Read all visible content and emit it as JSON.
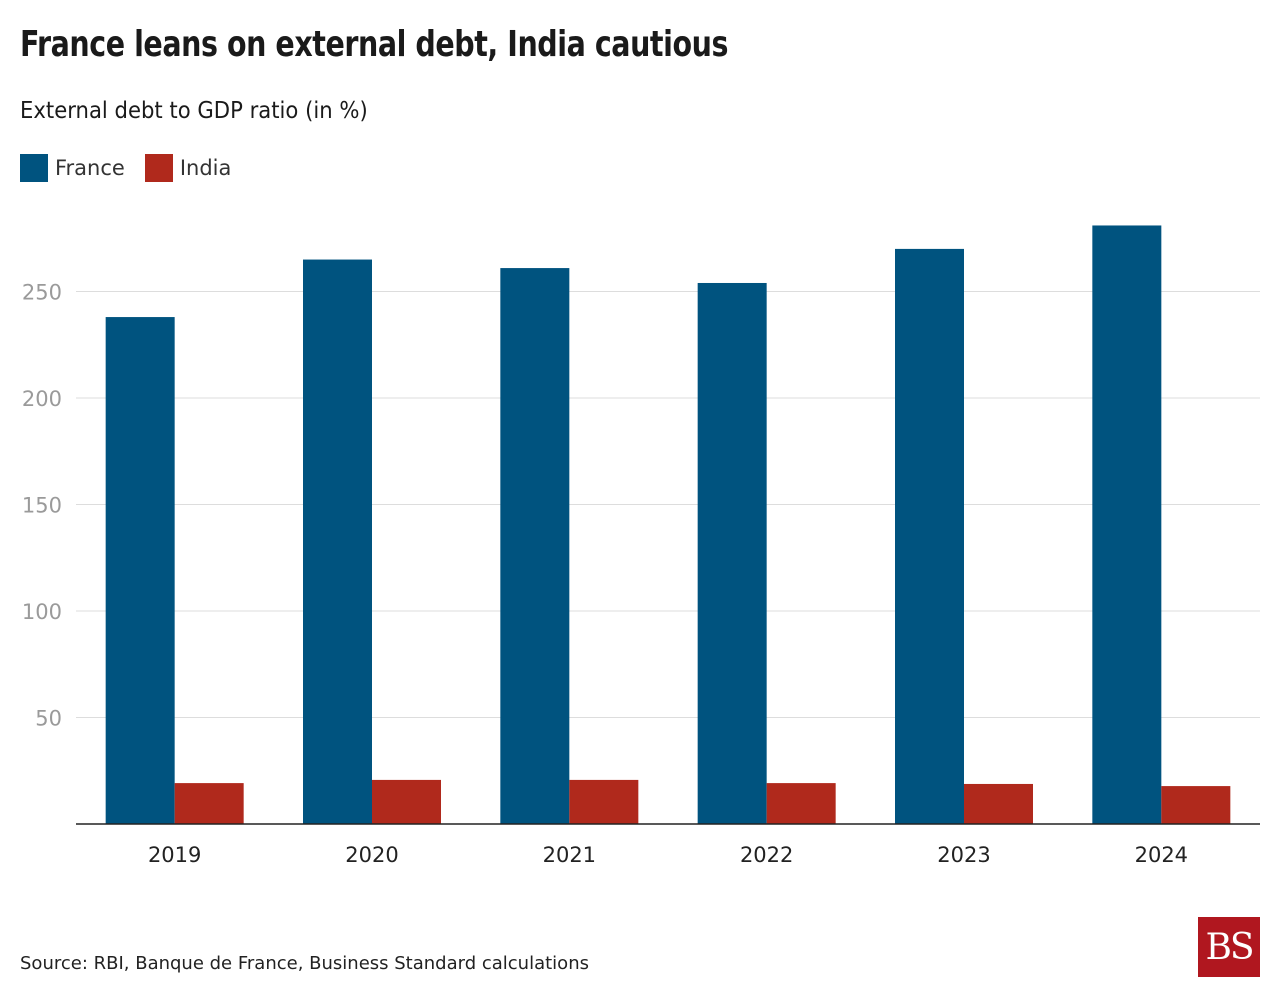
{
  "title": "France leans on external debt, India cautious",
  "subtitle": "External debt to GDP ratio (in %)",
  "source": "Source: RBI, Banque de France, Business Standard calculations",
  "logo": "BS",
  "chart_data": {
    "type": "bar",
    "title": "France leans on external debt, India cautious",
    "ylabel": "External debt to GDP ratio (in %)",
    "xlabel": "",
    "categories": [
      "2019",
      "2020",
      "2021",
      "2022",
      "2023",
      "2024"
    ],
    "series": [
      {
        "name": "France",
        "color": "#00537f",
        "values": [
          238,
          265,
          261,
          254,
          270,
          281
        ]
      },
      {
        "name": "India",
        "color": "#b0291c",
        "values": [
          19.2,
          20.7,
          20.7,
          19.2,
          18.8,
          17.8
        ]
      }
    ],
    "ylim": [
      0,
      290
    ],
    "yticks": [
      50,
      100,
      150,
      200,
      250
    ],
    "grid": true,
    "legend": "top-left"
  }
}
